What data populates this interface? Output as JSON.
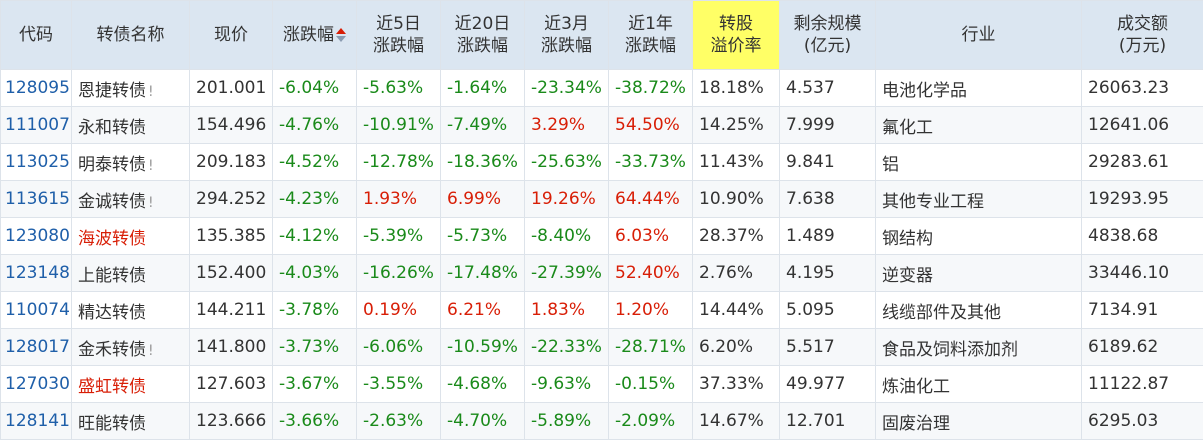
{
  "headers": {
    "code": "代码",
    "name": "转债名称",
    "price": "现价",
    "change": "涨跌幅",
    "d5_l1": "近5日",
    "d5_l2": "涨跌幅",
    "d20_l1": "近20日",
    "d20_l2": "涨跌幅",
    "m3_l1": "近3月",
    "m3_l2": "涨跌幅",
    "y1_l1": "近1年",
    "y1_l2": "涨跌幅",
    "prem_l1": "转股",
    "prem_l2": "溢价率",
    "scale_l1": "剩余规模",
    "scale_l2": "(亿元)",
    "industry": "行业",
    "vol_l1": "成交额",
    "vol_l2": "(万元)"
  },
  "rows": [
    {
      "code": "128095",
      "name": "恩捷转债",
      "warn": "!",
      "price": "201.001",
      "change": "-6.04%",
      "d5": "-5.63%",
      "d20": "-1.64%",
      "m3": "-23.34%",
      "y1": "-38.72%",
      "premium": "18.18%",
      "scale": "4.537",
      "industry": "电池化学品",
      "volume": "26063.23"
    },
    {
      "code": "111007",
      "name": "永和转债",
      "warn": "",
      "price": "154.496",
      "change": "-4.76%",
      "d5": "-10.91%",
      "d20": "-7.49%",
      "m3": "3.29%",
      "y1": "54.50%",
      "premium": "14.25%",
      "scale": "7.999",
      "industry": "氟化工",
      "volume": "12641.06"
    },
    {
      "code": "113025",
      "name": "明泰转债",
      "warn": "!",
      "price": "209.183",
      "change": "-4.52%",
      "d5": "-12.78%",
      "d20": "-18.36%",
      "m3": "-25.63%",
      "y1": "-33.73%",
      "premium": "11.43%",
      "scale": "9.841",
      "industry": "铝",
      "volume": "29283.61"
    },
    {
      "code": "113615",
      "name": "金诚转债",
      "warn": "!",
      "price": "294.252",
      "change": "-4.23%",
      "d5": "1.93%",
      "d20": "6.99%",
      "m3": "19.26%",
      "y1": "64.44%",
      "premium": "10.90%",
      "scale": "7.638",
      "industry": "其他专业工程",
      "volume": "19293.95"
    },
    {
      "code": "123080",
      "name": "海波转债",
      "warn": "",
      "price": "135.385",
      "change": "-4.12%",
      "d5": "-5.39%",
      "d20": "-5.73%",
      "m3": "-8.40%",
      "y1": "6.03%",
      "premium": "28.37%",
      "scale": "1.489",
      "industry": "钢结构",
      "volume": "4838.68",
      "name_red": true
    },
    {
      "code": "123148",
      "name": "上能转债",
      "warn": "",
      "price": "152.400",
      "change": "-4.03%",
      "d5": "-16.26%",
      "d20": "-17.48%",
      "m3": "-27.39%",
      "y1": "52.40%",
      "premium": "2.76%",
      "scale": "4.195",
      "industry": "逆变器",
      "volume": "33446.10"
    },
    {
      "code": "110074",
      "name": "精达转债",
      "warn": "",
      "price": "144.211",
      "change": "-3.78%",
      "d5": "0.19%",
      "d20": "6.21%",
      "m3": "1.83%",
      "y1": "1.20%",
      "premium": "14.44%",
      "scale": "5.095",
      "industry": "线缆部件及其他",
      "volume": "7134.91"
    },
    {
      "code": "128017",
      "name": "金禾转债",
      "warn": "!",
      "price": "141.800",
      "change": "-3.73%",
      "d5": "-6.06%",
      "d20": "-10.59%",
      "m3": "-22.33%",
      "y1": "-28.71%",
      "premium": "6.20%",
      "scale": "5.517",
      "industry": "食品及饲料添加剂",
      "volume": "6189.62"
    },
    {
      "code": "127030",
      "name": "盛虹转债",
      "warn": "",
      "price": "127.603",
      "change": "-3.67%",
      "d5": "-3.55%",
      "d20": "-4.68%",
      "m3": "-9.63%",
      "y1": "-0.15%",
      "premium": "37.33%",
      "scale": "49.977",
      "industry": "炼油化工",
      "volume": "11122.87",
      "name_red": true
    },
    {
      "code": "128141",
      "name": "旺能转债",
      "warn": "",
      "price": "123.666",
      "change": "-3.66%",
      "d5": "-2.63%",
      "d20": "-4.70%",
      "m3": "-5.89%",
      "y1": "-2.09%",
      "premium": "14.67%",
      "scale": "12.701",
      "industry": "固废治理",
      "volume": "6295.03"
    }
  ]
}
